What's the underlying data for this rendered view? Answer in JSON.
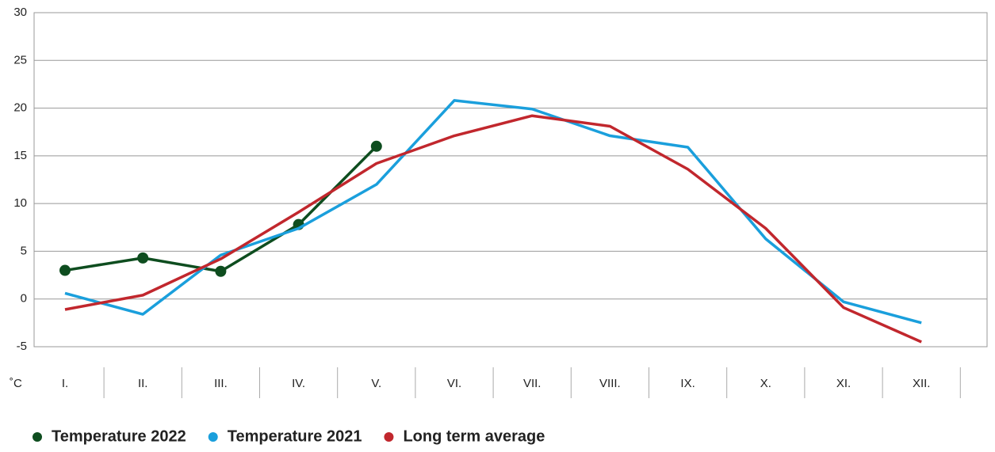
{
  "chart_data": {
    "type": "line",
    "y_label": "˚C",
    "categories": [
      "I.",
      "II.",
      "III.",
      "IV.",
      "V.",
      "VI.",
      "VII.",
      "VIII.",
      "IX.",
      "X.",
      "XI.",
      "XII."
    ],
    "series": [
      {
        "name": "Temperature 2022",
        "color": "#0e4d1f",
        "marker": true,
        "values": [
          3,
          4.3,
          2.9,
          7.8,
          16,
          null,
          null,
          null,
          null,
          null,
          null,
          null
        ]
      },
      {
        "name": "Temperature 2021",
        "color": "#1a9fdc",
        "values": [
          0.6,
          -1.6,
          4.6,
          7.4,
          12,
          20.8,
          19.9,
          17.1,
          15.9,
          6.3,
          -0.3,
          -2.5
        ]
      },
      {
        "name": "Long term average",
        "color": "#c1272d",
        "values": [
          -1.1,
          0.4,
          4.2,
          9.1,
          14.2,
          17.1,
          19.2,
          18.1,
          13.6,
          7.4,
          -0.9,
          -4.5
        ]
      }
    ],
    "ylim": [
      -5,
      30
    ],
    "yticks": [
      -5,
      0,
      5,
      10,
      15,
      20,
      25,
      30
    ],
    "grid": true
  }
}
